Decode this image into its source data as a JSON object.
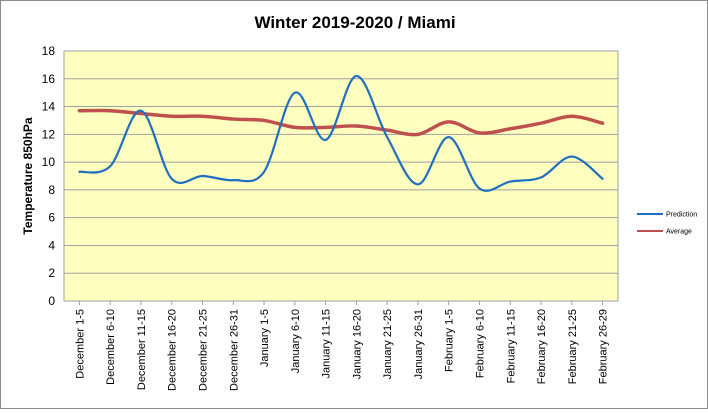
{
  "chart_data": {
    "type": "line",
    "title": "Winter 2019-2020 / Miami",
    "xlabel": "",
    "ylabel": "Temperature 850hPa",
    "ylim": [
      0,
      18
    ],
    "y_ticks": [
      0,
      2,
      4,
      6,
      8,
      10,
      12,
      14,
      16,
      18
    ],
    "grid": true,
    "legend_position": "right",
    "plot_background": "#ffffc0",
    "categories": [
      "December 1-5",
      "December 6-10",
      "December 11-15",
      "December 16-20",
      "December 21-25",
      "December 26-31",
      "January 1-5",
      "January 6-10",
      "January 11-15",
      "January 16-20",
      "January 21-25",
      "January 26-31",
      "February 1-5",
      "February 6-10",
      "February 11-15",
      "February 16-20",
      "February 21-25",
      "February 26-29"
    ],
    "series": [
      {
        "name": "Prediction",
        "color": "#1f6fc0",
        "values": [
          9.3,
          9.7,
          13.7,
          8.8,
          9.0,
          8.7,
          9.3,
          15.0,
          11.6,
          16.2,
          11.8,
          8.4,
          11.8,
          8.1,
          8.6,
          8.9,
          10.4,
          8.8
        ]
      },
      {
        "name": "Average",
        "color": "#c0504d",
        "values": [
          13.7,
          13.7,
          13.5,
          13.3,
          13.3,
          13.1,
          13.0,
          12.5,
          12.5,
          12.6,
          12.3,
          12.0,
          12.9,
          12.1,
          12.4,
          12.8,
          13.3,
          12.8
        ]
      }
    ]
  }
}
